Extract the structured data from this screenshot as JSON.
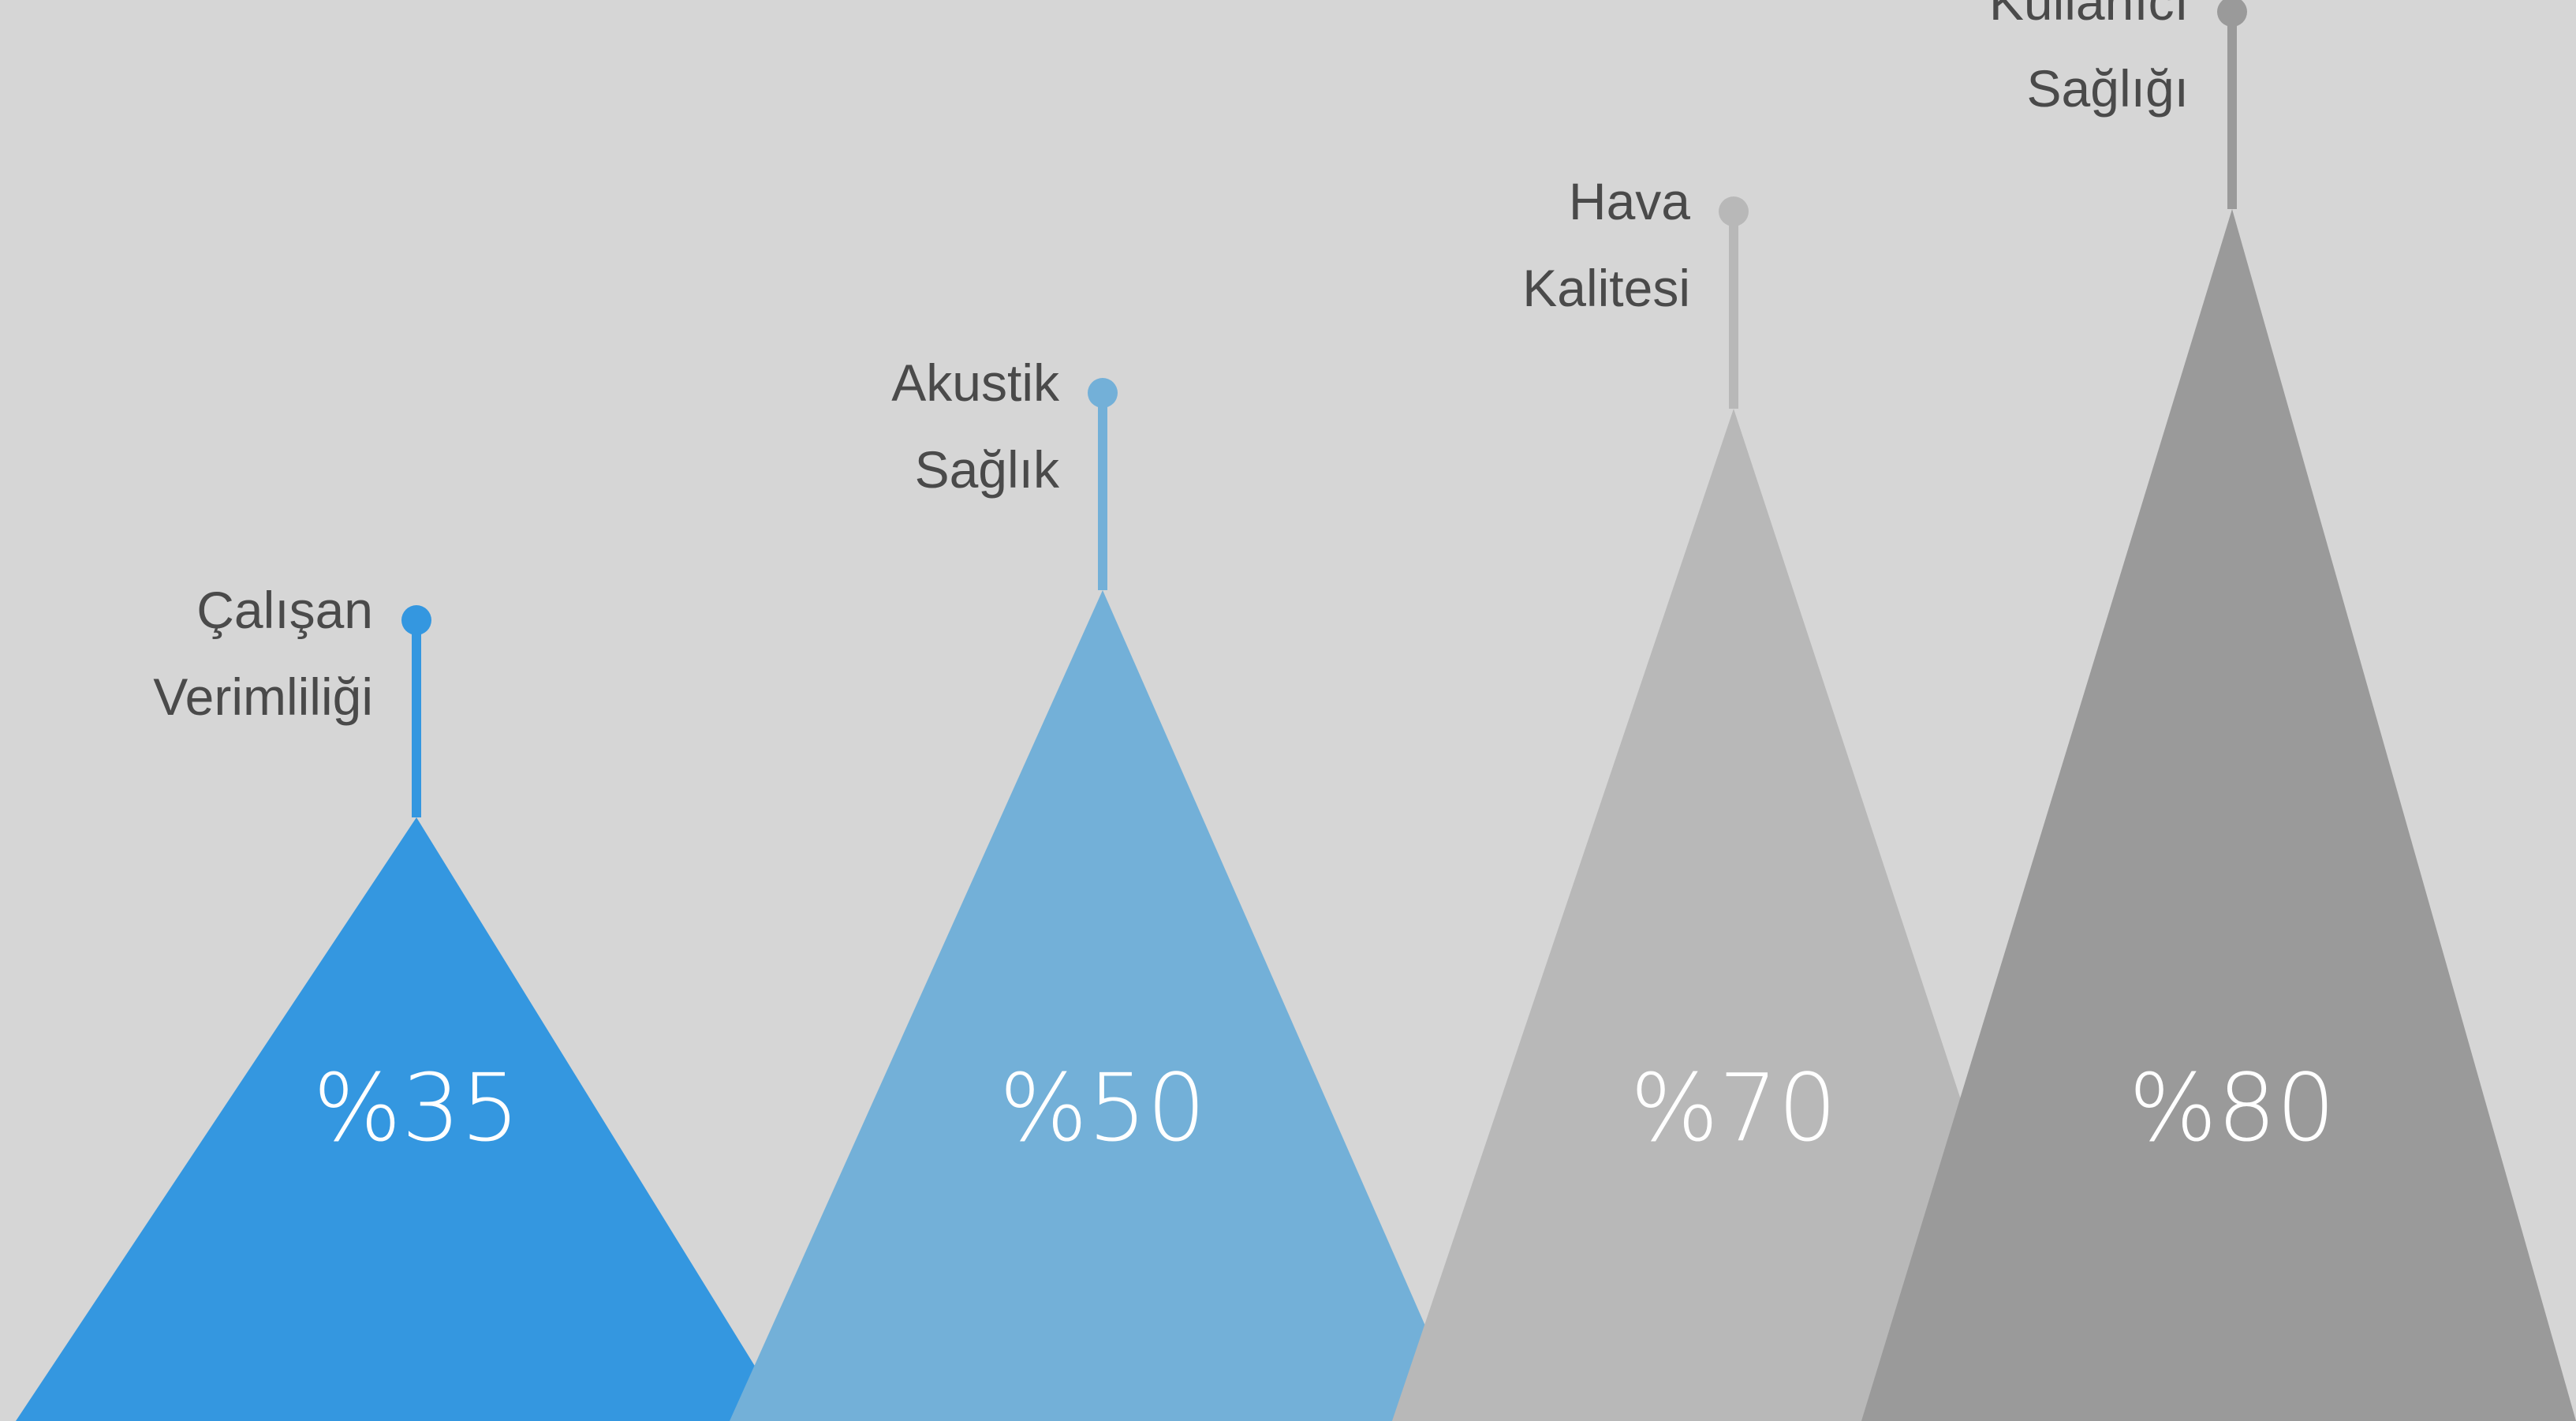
{
  "chart_data": {
    "type": "bar",
    "title": "",
    "xlabel": "",
    "ylabel": "",
    "ylim": [
      0,
      100
    ],
    "grid": false,
    "legend": "none",
    "categories": [
      [
        "Çalışan",
        "Verimliliği"
      ],
      [
        "Akustik",
        "Sağlık"
      ],
      [
        "Hava",
        "Kalitesi"
      ],
      [
        "Kullanıcı",
        "Sağlığı"
      ]
    ],
    "values": [
      35,
      50,
      70,
      80
    ],
    "value_labels": [
      "%35",
      "%50",
      "%70",
      "%80"
    ],
    "colors": [
      "#3497e0",
      "#73b0d8",
      "#b8b8b8",
      "#9a9a9a"
    ]
  }
}
